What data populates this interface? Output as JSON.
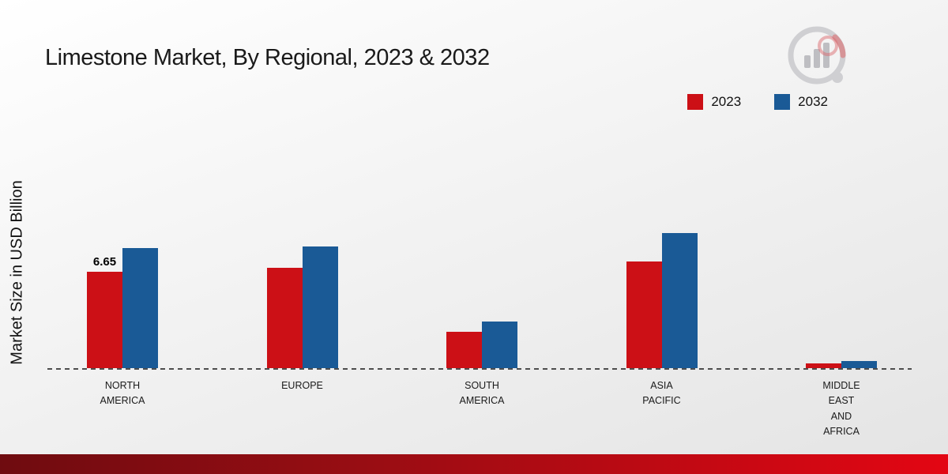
{
  "title": "Limestone Market, By Regional, 2023 & 2032",
  "y_axis_label": "Market Size in USD Billion",
  "legend": {
    "items": [
      {
        "label": "2023",
        "color": "#cc1016"
      },
      {
        "label": "2032",
        "color": "#1a5a96"
      }
    ]
  },
  "chart_data": {
    "type": "bar",
    "title": "Limestone Market, By Regional, 2023 & 2032",
    "ylabel": "Market Size in USD Billion",
    "ylim": [
      0,
      10
    ],
    "grid": false,
    "legend_position": "top-right",
    "baseline_style": "dashed",
    "categories": [
      {
        "name": "NORTH AMERICA",
        "lines": [
          "NORTH",
          "AMERICA"
        ]
      },
      {
        "name": "EUROPE",
        "lines": [
          "EUROPE"
        ]
      },
      {
        "name": "SOUTH AMERICA",
        "lines": [
          "SOUTH",
          "AMERICA"
        ]
      },
      {
        "name": "ASIA PACIFIC",
        "lines": [
          "ASIA",
          "PACIFIC"
        ]
      },
      {
        "name": "MIDDLE EAST AND AFRICA",
        "lines": [
          "MIDDLE",
          "EAST",
          "AND",
          "AFRICA"
        ]
      }
    ],
    "series": [
      {
        "name": "2023",
        "color": "#cc1016",
        "values": [
          6.65,
          6.95,
          2.5,
          7.35,
          0.35
        ]
      },
      {
        "name": "2032",
        "color": "#1a5a96",
        "values": [
          8.3,
          8.4,
          3.25,
          9.35,
          0.5
        ]
      }
    ],
    "data_labels": [
      {
        "series": "2023",
        "category": "NORTH AMERICA",
        "text": "6.65"
      }
    ]
  },
  "footer": {
    "gradient": [
      "#6f0c10",
      "#e30613"
    ]
  },
  "logo": {
    "name": "market-research-logo"
  }
}
